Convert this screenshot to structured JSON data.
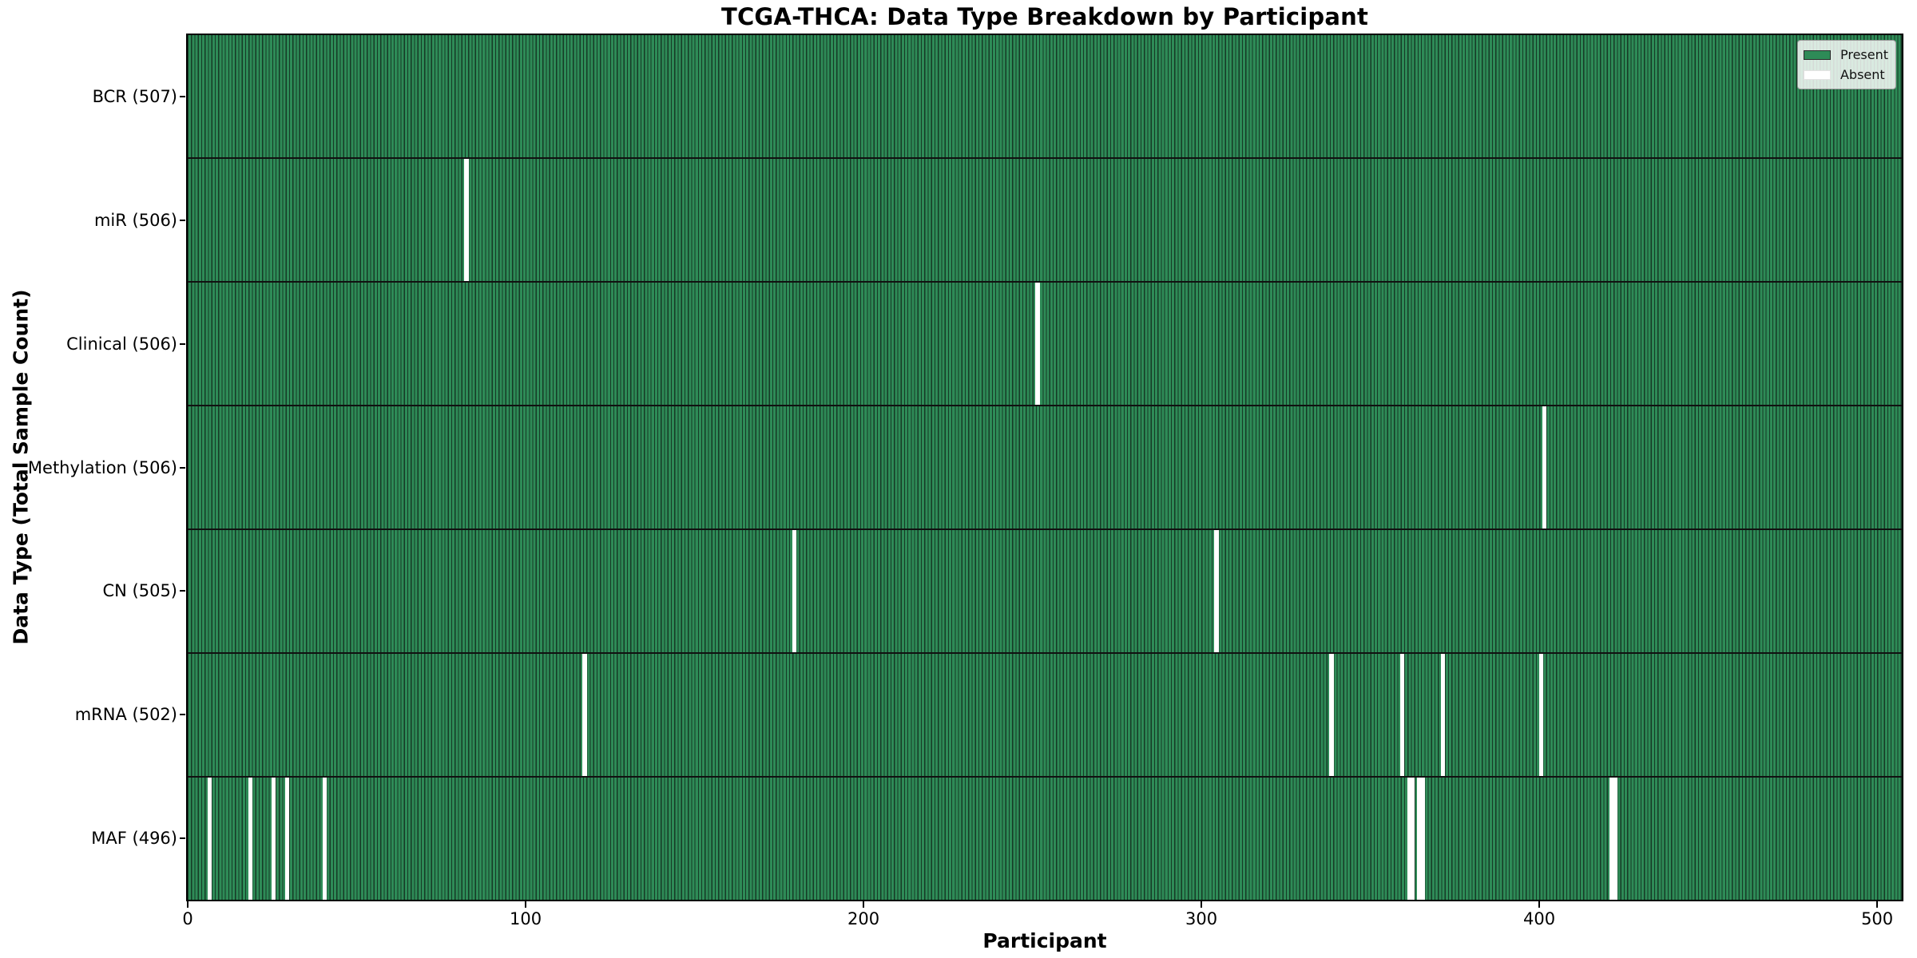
{
  "chart_data": {
    "type": "heatmap",
    "title": "TCGA-THCA: Data Type Breakdown by Participant",
    "xlabel": "Participant",
    "ylabel": "Data Type (Total Sample Count)",
    "n_participants": 507,
    "x_ticks": [
      0,
      100,
      200,
      300,
      400,
      500
    ],
    "xlim": [
      0,
      507.3
    ],
    "grid": false,
    "legend": {
      "position": "upper-right",
      "entries": [
        {
          "label": "Present",
          "color": "#2e8b57"
        },
        {
          "label": "Absent",
          "color": "#ffffff"
        }
      ]
    },
    "colors": {
      "present": "#2e8b57",
      "absent": "#ffffff",
      "bar_edge": "#163a26",
      "spine": "#000000"
    },
    "rows": [
      {
        "label": "BCR",
        "total": 507,
        "display": "BCR (507)",
        "absent_participants": []
      },
      {
        "label": "miR",
        "total": 506,
        "display": "miR (506)",
        "absent_participants": [
          82
        ]
      },
      {
        "label": "Clinical",
        "total": 506,
        "display": "Clinical (506)",
        "absent_participants": [
          251
        ]
      },
      {
        "label": "Methylation",
        "total": 506,
        "display": "Methylation (506)",
        "absent_participants": [
          401
        ]
      },
      {
        "label": "CN",
        "total": 505,
        "display": "CN (505)",
        "absent_participants": [
          179,
          304
        ]
      },
      {
        "label": "mRNA",
        "total": 502,
        "display": "mRNA (502)",
        "absent_participants": [
          117,
          338,
          359,
          371,
          400
        ]
      },
      {
        "label": "MAF",
        "total": 496,
        "display": "MAF (496)",
        "absent_participants": [
          6,
          18,
          25,
          29,
          40,
          361,
          362,
          364,
          365,
          421,
          422
        ]
      }
    ]
  }
}
